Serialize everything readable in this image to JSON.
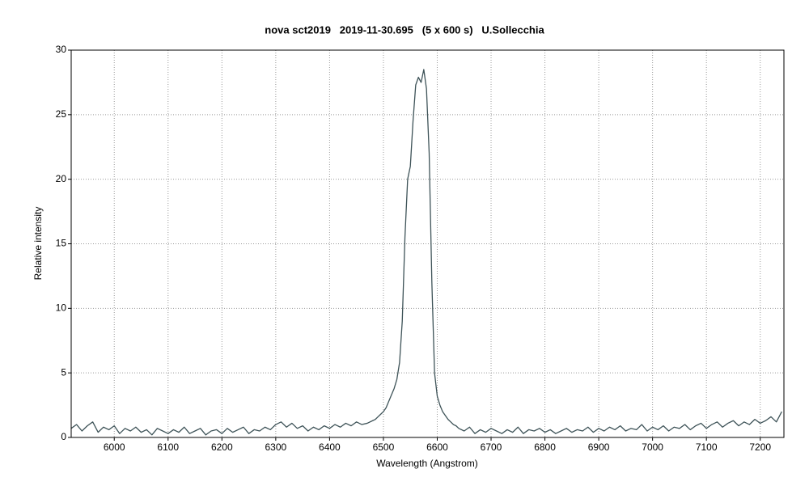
{
  "chart_data": {
    "type": "line",
    "title": "nova sct2019   2019-11-30.695   (5 x 600 s)   U.Sollecchia",
    "x_label": "Wavelength (Angstrom)",
    "y_label": "Relative intensity",
    "color": "#3e5358",
    "grid": true,
    "xlim": [
      5920,
      7244
    ],
    "ylim": [
      0,
      30
    ],
    "xticks": [
      6000,
      6100,
      6200,
      6300,
      6400,
      6500,
      6600,
      6700,
      6800,
      6900,
      7000,
      7100,
      7200
    ],
    "yticks": [
      0,
      5,
      10,
      15,
      20,
      25,
      30
    ],
    "x": [
      5920,
      5930,
      5940,
      5950,
      5960,
      5970,
      5980,
      5990,
      6000,
      6010,
      6020,
      6030,
      6040,
      6050,
      6060,
      6070,
      6080,
      6090,
      6100,
      6110,
      6120,
      6130,
      6140,
      6150,
      6160,
      6170,
      6180,
      6190,
      6200,
      6210,
      6220,
      6230,
      6240,
      6250,
      6260,
      6270,
      6280,
      6290,
      6300,
      6310,
      6320,
      6330,
      6340,
      6350,
      6360,
      6370,
      6380,
      6390,
      6400,
      6410,
      6420,
      6430,
      6440,
      6450,
      6460,
      6470,
      6480,
      6485,
      6490,
      6495,
      6500,
      6505,
      6510,
      6515,
      6520,
      6525,
      6530,
      6535,
      6540,
      6545,
      6550,
      6555,
      6560,
      6565,
      6570,
      6575,
      6580,
      6585,
      6590,
      6595,
      6600,
      6605,
      6610,
      6615,
      6620,
      6625,
      6630,
      6635,
      6640,
      6650,
      6660,
      6670,
      6680,
      6690,
      6700,
      6710,
      6720,
      6730,
      6740,
      6750,
      6760,
      6770,
      6780,
      6790,
      6800,
      6810,
      6820,
      6830,
      6840,
      6850,
      6860,
      6870,
      6880,
      6890,
      6900,
      6910,
      6920,
      6930,
      6940,
      6950,
      6960,
      6970,
      6980,
      6990,
      7000,
      7010,
      7020,
      7030,
      7040,
      7050,
      7060,
      7070,
      7080,
      7090,
      7100,
      7110,
      7120,
      7130,
      7140,
      7150,
      7160,
      7170,
      7180,
      7190,
      7200,
      7210,
      7220,
      7230,
      7240
    ],
    "values": [
      0.7,
      1.0,
      0.5,
      0.9,
      1.2,
      0.4,
      0.8,
      0.6,
      0.9,
      0.3,
      0.7,
      0.5,
      0.8,
      0.4,
      0.6,
      0.2,
      0.7,
      0.5,
      0.3,
      0.6,
      0.4,
      0.8,
      0.3,
      0.5,
      0.7,
      0.2,
      0.5,
      0.6,
      0.3,
      0.7,
      0.4,
      0.6,
      0.8,
      0.3,
      0.6,
      0.5,
      0.8,
      0.6,
      1.0,
      1.2,
      0.8,
      1.1,
      0.7,
      0.9,
      0.5,
      0.8,
      0.6,
      0.9,
      0.7,
      1.0,
      0.8,
      1.1,
      0.9,
      1.2,
      1.0,
      1.1,
      1.3,
      1.4,
      1.6,
      1.8,
      2.0,
      2.3,
      2.8,
      3.3,
      3.8,
      4.5,
      5.8,
      9.0,
      15.5,
      20.0,
      21.0,
      24.5,
      27.3,
      27.9,
      27.5,
      28.5,
      27.0,
      22.0,
      12.0,
      5.0,
      3.2,
      2.5,
      2.0,
      1.7,
      1.4,
      1.2,
      1.0,
      0.9,
      0.7,
      0.5,
      0.8,
      0.3,
      0.6,
      0.4,
      0.7,
      0.5,
      0.3,
      0.6,
      0.4,
      0.8,
      0.3,
      0.6,
      0.5,
      0.7,
      0.4,
      0.6,
      0.3,
      0.5,
      0.7,
      0.4,
      0.6,
      0.5,
      0.8,
      0.4,
      0.7,
      0.5,
      0.8,
      0.6,
      0.9,
      0.5,
      0.7,
      0.6,
      1.0,
      0.5,
      0.8,
      0.6,
      0.9,
      0.5,
      0.8,
      0.7,
      1.0,
      0.6,
      0.9,
      1.1,
      0.7,
      1.0,
      1.2,
      0.8,
      1.1,
      1.3,
      0.9,
      1.2,
      1.0,
      1.4,
      1.1,
      1.3,
      1.6,
      1.2,
      2.0
    ]
  }
}
